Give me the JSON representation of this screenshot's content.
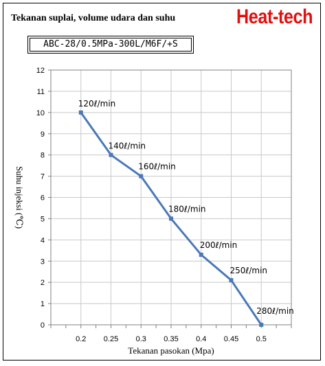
{
  "header": {
    "title": "Tekanan suplai, volume udara dan suhu",
    "brand": "Heat-tech",
    "model": "ABC-28/0.5MPa-300L/M6F/+S"
  },
  "colors": {
    "brand": "#e01010",
    "series": "#4a78b8",
    "grid": "#c8c8c8"
  },
  "chart_data": {
    "type": "line",
    "xlabel": "Tekanan pasokan (Mpa)",
    "ylabel": "Suhu injeksi (℃)",
    "xlim": [
      0.15,
      0.55
    ],
    "ylim": [
      0,
      12
    ],
    "x_ticks": [
      "0.2",
      "0.25",
      "0.3",
      "0.35",
      "0.4",
      "0.45",
      "0.5"
    ],
    "y_ticks": [
      "0",
      "1",
      "2",
      "3",
      "4",
      "5",
      "6",
      "7",
      "8",
      "9",
      "10",
      "11",
      "12"
    ],
    "grid": true,
    "legend": "none",
    "series": [
      {
        "x": [
          0.2,
          0.25,
          0.3,
          0.35,
          0.4,
          0.45,
          0.5
        ],
        "y": [
          10,
          8,
          7,
          5,
          3.3,
          2.1,
          0
        ],
        "labels": [
          "120ℓ/min",
          "140ℓ/min",
          "160ℓ/min",
          "180ℓ/min",
          "200ℓ/min",
          "250ℓ/min",
          "280ℓ/min"
        ]
      }
    ]
  }
}
